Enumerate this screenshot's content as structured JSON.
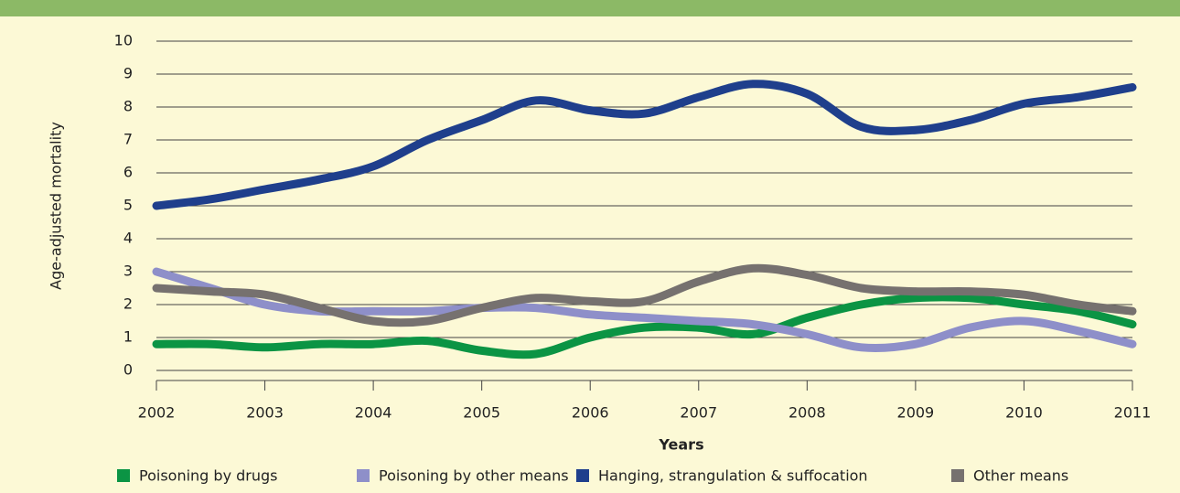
{
  "chart_data": {
    "type": "line",
    "x_label": "Years",
    "y_label": "Age-adjusted mortality",
    "x": [
      2002,
      2002.5,
      2003,
      2003.5,
      2004,
      2004.5,
      2005,
      2005.5,
      2006,
      2006.5,
      2007,
      2007.5,
      2008,
      2008.5,
      2009,
      2009.5,
      2010,
      2010.5,
      2011
    ],
    "xlim": [
      2002,
      2011
    ],
    "xticks": [
      2002,
      2003,
      2004,
      2005,
      2006,
      2007,
      2008,
      2009,
      2010,
      2011
    ],
    "ylim": [
      0,
      10
    ],
    "yticks": [
      0,
      1,
      2,
      3,
      4,
      5,
      6,
      7,
      8,
      9,
      10
    ],
    "grid": true,
    "series": [
      {
        "name": "Poisoning by drugs",
        "color": "#0b9444",
        "values": [
          0.8,
          0.8,
          0.7,
          0.8,
          0.8,
          0.9,
          0.6,
          0.5,
          1.0,
          1.3,
          1.3,
          1.1,
          1.6,
          2.0,
          2.2,
          2.2,
          2.0,
          1.8,
          1.4
        ]
      },
      {
        "name": "Poisoning by other means",
        "color": "#8e8fc9",
        "values": [
          3.0,
          2.5,
          2.0,
          1.8,
          1.8,
          1.8,
          1.9,
          1.9,
          1.7,
          1.6,
          1.5,
          1.4,
          1.1,
          0.7,
          0.8,
          1.3,
          1.5,
          1.2,
          0.8
        ]
      },
      {
        "name": "Hanging, strangulation & suffocation",
        "color": "#1f3f8c",
        "values": [
          5.0,
          5.2,
          5.5,
          5.8,
          6.2,
          7.0,
          7.6,
          8.2,
          7.9,
          7.8,
          8.3,
          8.7,
          8.4,
          7.4,
          7.3,
          7.6,
          8.1,
          8.3,
          8.6
        ]
      },
      {
        "name": "Other means",
        "color": "#76716f",
        "values": [
          2.5,
          2.4,
          2.3,
          1.9,
          1.5,
          1.5,
          1.9,
          2.2,
          2.1,
          2.1,
          2.7,
          3.1,
          2.9,
          2.5,
          2.4,
          2.4,
          2.3,
          2.0,
          1.8
        ]
      }
    ]
  }
}
